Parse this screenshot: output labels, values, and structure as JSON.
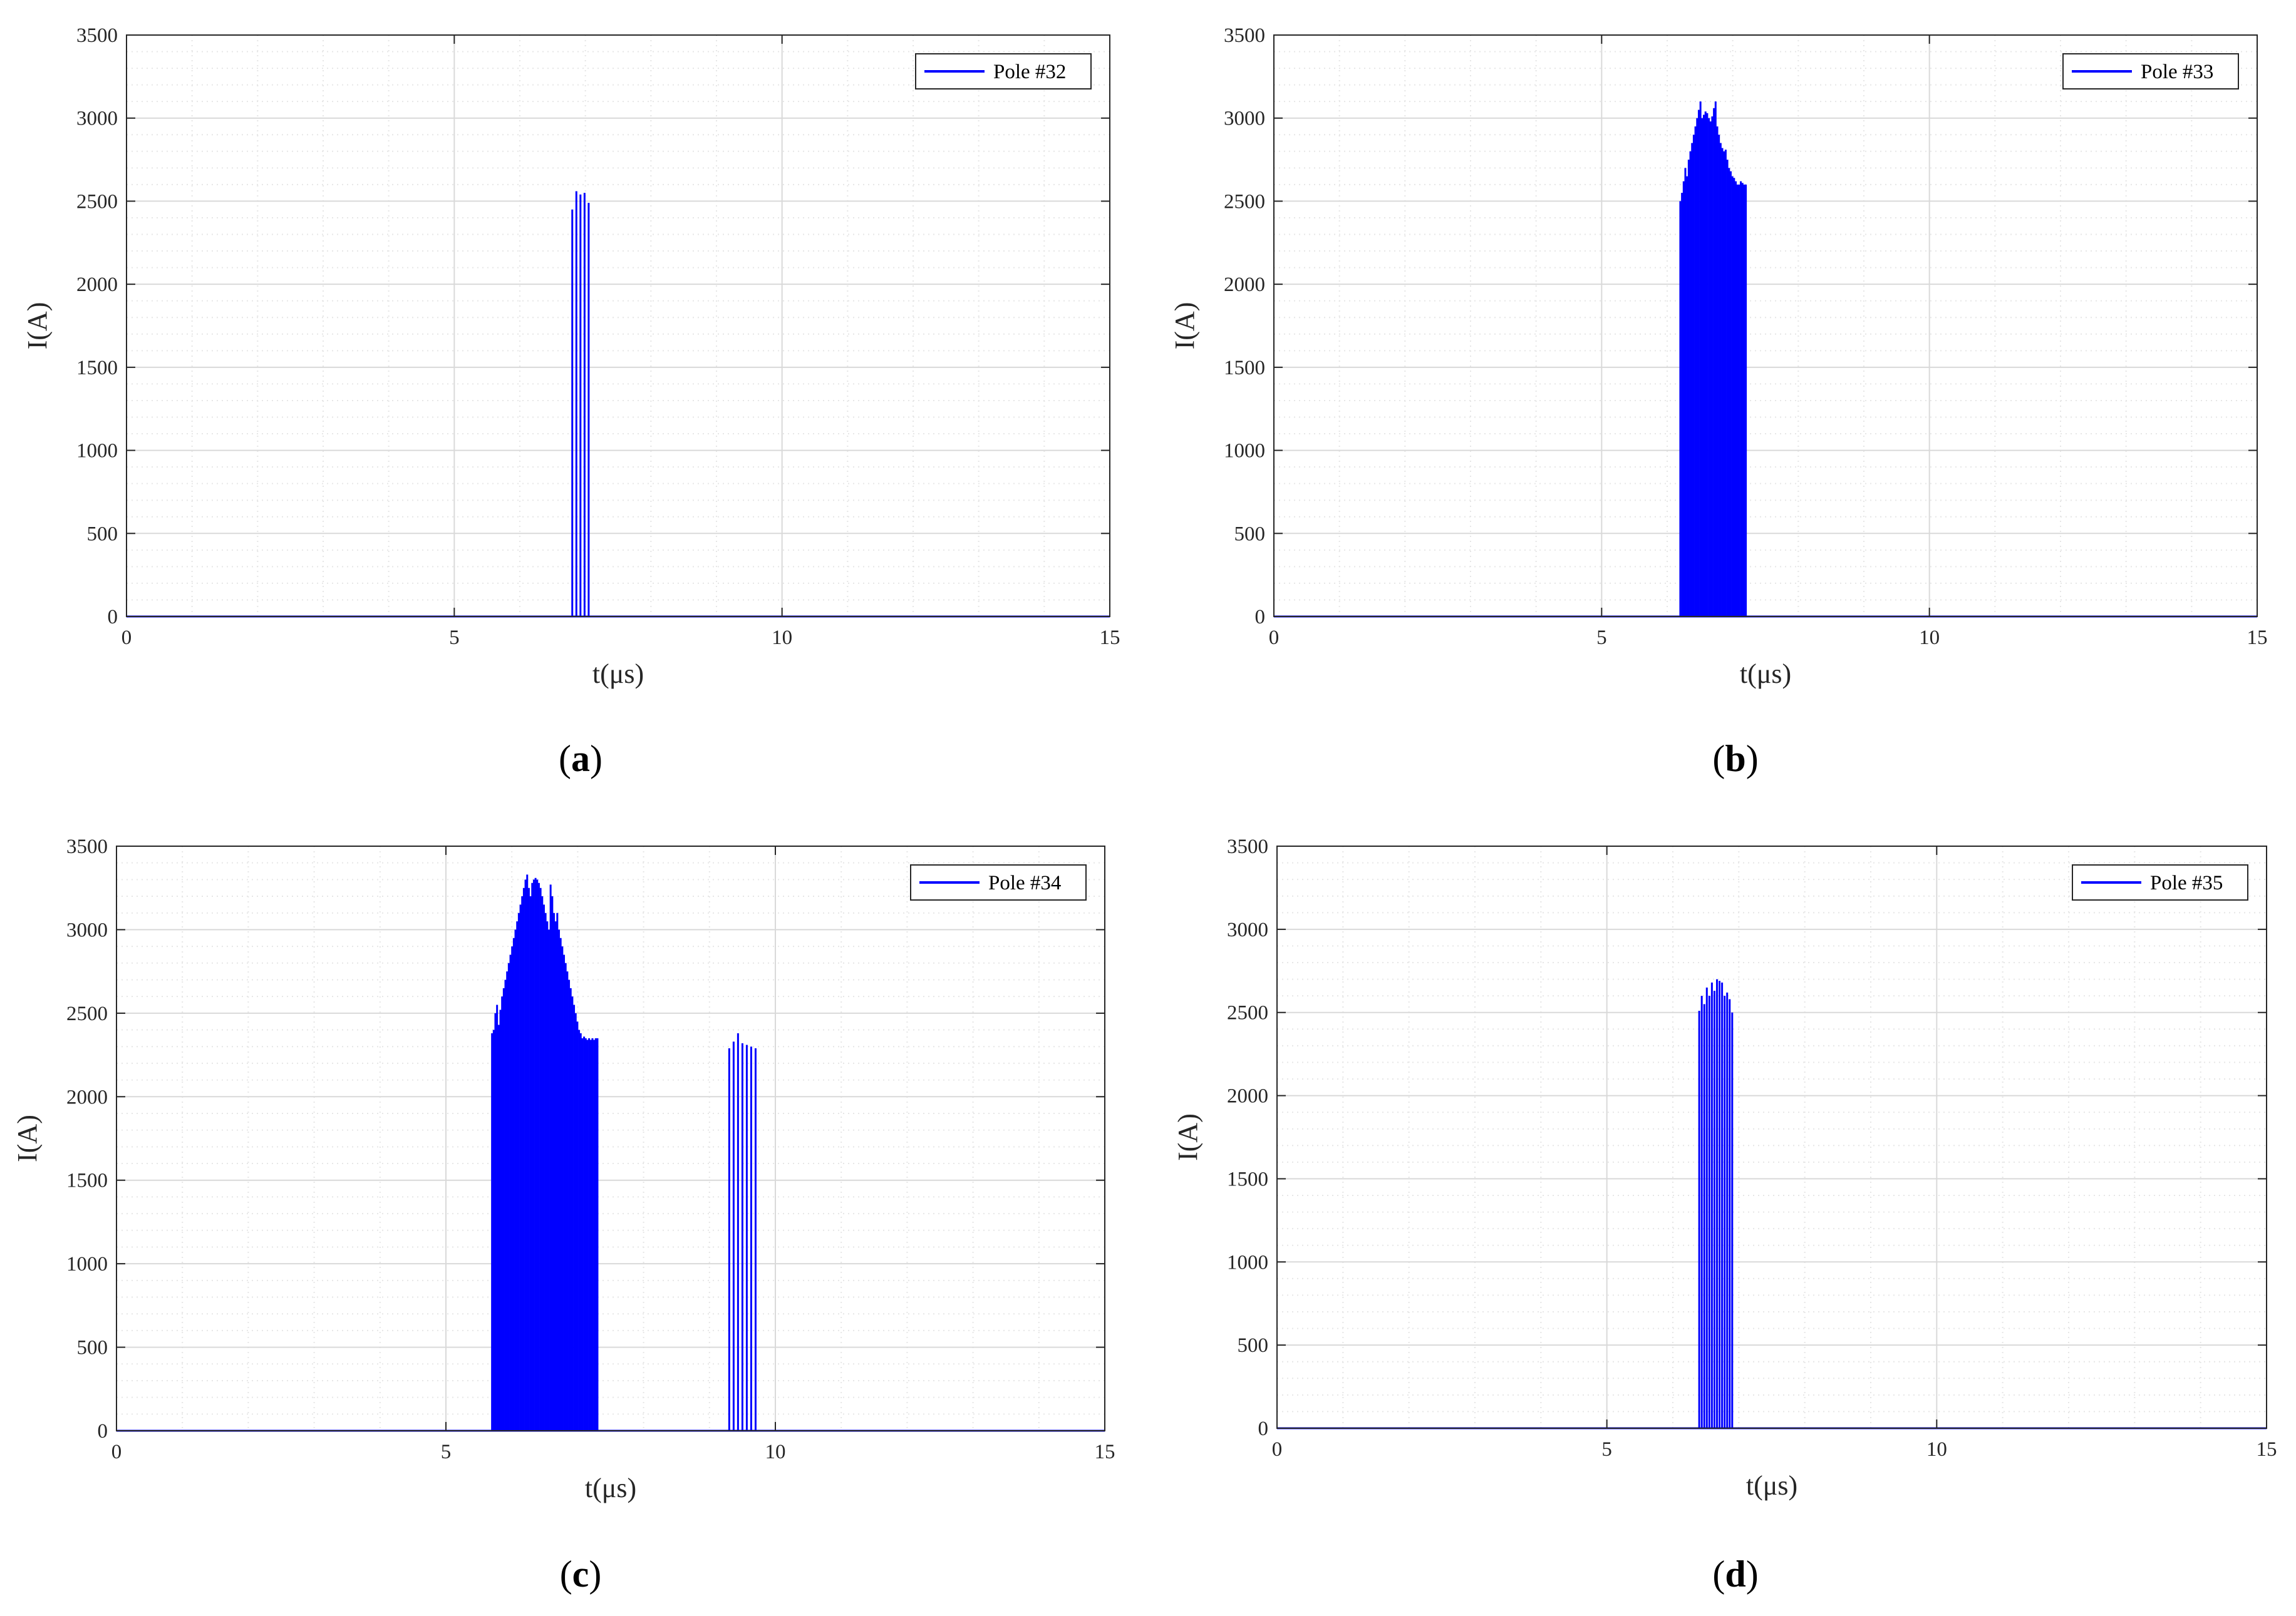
{
  "colors": {
    "series": "#0000ff",
    "grid_major": "#d9d9d9",
    "grid_minor": "#e6e6e6",
    "axis": "#262626",
    "background": "#ffffff"
  },
  "chart_data": [
    {
      "type": "line",
      "panel_label": "a",
      "xlabel": "t(μs)",
      "ylabel": "I(A)",
      "xlim": [
        0,
        15
      ],
      "ylim": [
        0,
        3500
      ],
      "xticks": [
        "0",
        "5",
        "10",
        "15"
      ],
      "yticks": [
        "0",
        "500",
        "1000",
        "1500",
        "2000",
        "2500",
        "3000",
        "3500"
      ],
      "grid": true,
      "minor_grid": true,
      "legend_position": "top-right",
      "series": [
        {
          "name": "Pole #32",
          "color": "#0000ff",
          "spike_groups": [
            {
              "t_start": 6.8,
              "t_end": 7.05,
              "count": 5,
              "peaks": [
                2450,
                2560,
                2540,
                2550,
                2490
              ]
            }
          ]
        }
      ]
    },
    {
      "type": "line",
      "panel_label": "b",
      "xlabel": "t(μs)",
      "ylabel": "I(A)",
      "xlim": [
        0,
        15
      ],
      "ylim": [
        0,
        3500
      ],
      "xticks": [
        "0",
        "5",
        "10",
        "15"
      ],
      "yticks": [
        "0",
        "500",
        "1000",
        "1500",
        "2000",
        "2500",
        "3000",
        "3500"
      ],
      "grid": true,
      "minor_grid": true,
      "legend_position": "top-right",
      "series": [
        {
          "name": "Pole #33",
          "color": "#0000ff",
          "spike_groups": [
            {
              "t_start": 6.2,
              "t_end": 7.2,
              "count": 40,
              "peaks": [
                2500,
                2550,
                2620,
                2700,
                2650,
                2750,
                2800,
                2850,
                2900,
                2950,
                3000,
                3050,
                3100,
                3000,
                3020,
                3040,
                3030,
                3000,
                2980,
                3010,
                3060,
                3100,
                2950,
                2900,
                2850,
                2820,
                2800,
                2810,
                2750,
                2700,
                2680,
                2650,
                2640,
                2620,
                2600,
                2600,
                2620,
                2610,
                2600,
                2600
              ]
            }
          ]
        }
      ]
    },
    {
      "type": "line",
      "panel_label": "c",
      "xlabel": "t(μs)",
      "ylabel": "I(A)",
      "xlim": [
        0,
        15
      ],
      "ylim": [
        0,
        3500
      ],
      "xticks": [
        "0",
        "5",
        "10",
        "15"
      ],
      "yticks": [
        "0",
        "500",
        "1000",
        "1500",
        "2000",
        "2500",
        "3000",
        "3500"
      ],
      "grid": true,
      "minor_grid": true,
      "legend_position": "top-right",
      "series": [
        {
          "name": "Pole #34",
          "color": "#0000ff",
          "spike_groups": [
            {
              "t_start": 5.7,
              "t_end": 7.3,
              "count": 64,
              "peaks": [
                2380,
                2400,
                2500,
                2550,
                2430,
                2520,
                2600,
                2650,
                2700,
                2750,
                2800,
                2850,
                2900,
                2950,
                3000,
                3050,
                3100,
                3150,
                3200,
                3250,
                3300,
                3330,
                3250,
                3200,
                3280,
                3300,
                3310,
                3300,
                3280,
                3250,
                3200,
                3150,
                3100,
                3050,
                3000,
                3270,
                3200,
                3100,
                3050,
                3100,
                3000,
                2950,
                2900,
                2850,
                2800,
                2750,
                2700,
                2650,
                2600,
                2550,
                2500,
                2450,
                2400,
                2380,
                2350,
                2360,
                2350,
                2340,
                2350,
                2340,
                2350,
                2340,
                2350,
                2350
              ]
            },
            {
              "t_start": 9.3,
              "t_end": 9.7,
              "count": 7,
              "peaks": [
                2290,
                2330,
                2380,
                2320,
                2310,
                2300,
                2290
              ]
            }
          ]
        }
      ]
    },
    {
      "type": "line",
      "panel_label": "d",
      "xlabel": "t(μs)",
      "ylabel": "I(A)",
      "xlim": [
        0,
        15
      ],
      "ylim": [
        0,
        3500
      ],
      "xticks": [
        "0",
        "5",
        "10",
        "15"
      ],
      "yticks": [
        "0",
        "500",
        "1000",
        "1500",
        "2000",
        "2500",
        "3000",
        "3500"
      ],
      "grid": true,
      "minor_grid": true,
      "legend_position": "top-right",
      "series": [
        {
          "name": "Pole #35",
          "color": "#0000ff",
          "spike_groups": [
            {
              "t_start": 6.4,
              "t_end": 6.9,
              "count": 14,
              "peaks": [
                2510,
                2600,
                2550,
                2650,
                2600,
                2680,
                2630,
                2700,
                2690,
                2680,
                2600,
                2620,
                2580,
                2500
              ]
            }
          ]
        }
      ]
    }
  ]
}
